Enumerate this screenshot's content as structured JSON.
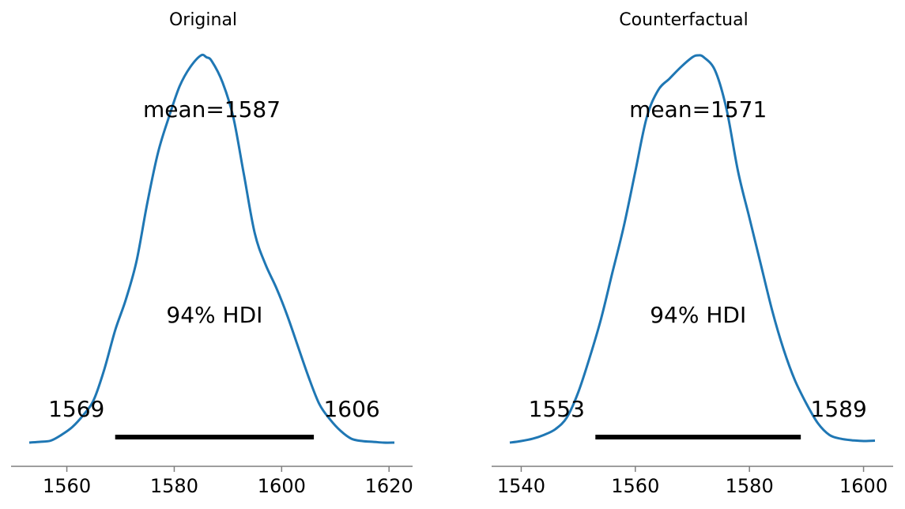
{
  "colors": {
    "kde": "#1f77b4",
    "hdi": "#000000",
    "axis": "#7f7f7f"
  },
  "chart_data": [
    {
      "type": "line",
      "title": "Original",
      "xlabel": "",
      "ylabel": "",
      "grid": false,
      "xlim": [
        1553,
        1621
      ],
      "xticks": [
        1560,
        1580,
        1600,
        1620
      ],
      "mean": 1587,
      "mean_label": "mean=1587",
      "hdi_label": "94% HDI",
      "hdi": [
        1569,
        1606
      ],
      "hdi_low_label": "1569",
      "hdi_high_label": "1606",
      "density": {
        "x": [
          1553,
          1555,
          1557,
          1559,
          1561,
          1563,
          1565,
          1567,
          1569,
          1571,
          1573,
          1575,
          1577,
          1579,
          1581,
          1583,
          1585,
          1586,
          1587,
          1589,
          1591,
          1593,
          1595,
          1597,
          1599,
          1601,
          1603,
          1605,
          1607,
          1609,
          1611,
          1613,
          1615,
          1617,
          1619,
          1621
        ],
        "y": [
          0.0,
          0.002,
          0.005,
          0.02,
          0.04,
          0.07,
          0.11,
          0.19,
          0.29,
          0.37,
          0.47,
          0.62,
          0.75,
          0.84,
          0.92,
          0.97,
          1.0,
          0.995,
          0.985,
          0.93,
          0.84,
          0.69,
          0.54,
          0.46,
          0.4,
          0.33,
          0.25,
          0.17,
          0.1,
          0.06,
          0.03,
          0.01,
          0.004,
          0.002,
          0.0,
          0.0
        ]
      }
    },
    {
      "type": "line",
      "title": "Counterfactual",
      "xlabel": "",
      "ylabel": "",
      "grid": false,
      "xlim": [
        1538,
        1602
      ],
      "xticks": [
        1540,
        1560,
        1580,
        1600
      ],
      "mean": 1571,
      "mean_label": "mean=1571",
      "hdi_label": "94% HDI",
      "hdi": [
        1553,
        1589
      ],
      "hdi_low_label": "1553",
      "hdi_high_label": "1589",
      "density": {
        "x": [
          1538,
          1540,
          1542,
          1544,
          1546,
          1548,
          1550,
          1552,
          1554,
          1556,
          1558,
          1560,
          1562,
          1564,
          1566,
          1568,
          1570,
          1571,
          1572,
          1574,
          1576,
          1578,
          1580,
          1582,
          1584,
          1586,
          1588,
          1590,
          1592,
          1594,
          1596,
          1598,
          1600,
          1602
        ],
        "y": [
          0.0,
          0.004,
          0.01,
          0.02,
          0.035,
          0.065,
          0.13,
          0.22,
          0.32,
          0.44,
          0.56,
          0.7,
          0.84,
          0.91,
          0.94,
          0.97,
          0.995,
          1.0,
          0.995,
          0.96,
          0.86,
          0.7,
          0.58,
          0.46,
          0.34,
          0.24,
          0.16,
          0.1,
          0.05,
          0.02,
          0.01,
          0.006,
          0.004,
          0.005
        ]
      }
    }
  ]
}
